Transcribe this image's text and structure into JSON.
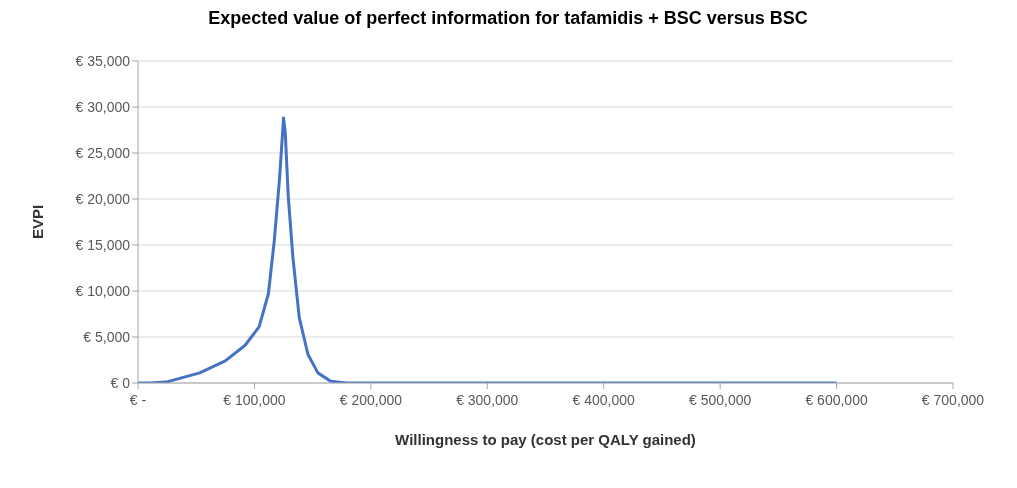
{
  "chart_data": {
    "type": "line",
    "title": "Expected value of perfect information for tafamidis + BSC versus BSC",
    "xlabel": "Willingness to pay (cost per QALY gained)",
    "ylabel": "EVPI",
    "x": [
      0,
      10000,
      24000,
      53000,
      75000,
      92000,
      104000,
      112000,
      117000,
      121500,
      125000,
      126500,
      129000,
      133000,
      138500,
      146000,
      154500,
      165500,
      179000,
      600000
    ],
    "series": [
      {
        "color": "#4472c4",
        "values": [
          0,
          0,
          100,
          1100,
          2400,
          4100,
          6100,
          9700,
          15400,
          22100,
          28800,
          27200,
          20400,
          13700,
          7100,
          3100,
          1100,
          200,
          0,
          0
        ]
      }
    ],
    "xlim": [
      0,
      700000
    ],
    "xticks": [
      {
        "value": 0,
        "label": "€ -"
      },
      {
        "value": 100000,
        "label": "€ 100,000"
      },
      {
        "value": 200000,
        "label": "€ 200,000"
      },
      {
        "value": 300000,
        "label": "€ 300,000"
      },
      {
        "value": 400000,
        "label": "€ 400,000"
      },
      {
        "value": 500000,
        "label": "€ 500,000"
      },
      {
        "value": 600000,
        "label": "€ 600,000"
      },
      {
        "value": 700000,
        "label": "€ 700,000"
      }
    ],
    "ylim": [
      0,
      35000
    ],
    "yticks": [
      {
        "value": 0,
        "label": "€ 0"
      },
      {
        "value": 5000,
        "label": "€ 5,000"
      },
      {
        "value": 10000,
        "label": "€ 10,000"
      },
      {
        "value": 15000,
        "label": "€ 15,000"
      },
      {
        "value": 20000,
        "label": "€ 20,000"
      },
      {
        "value": 25000,
        "label": "€ 25,000"
      },
      {
        "value": 30000,
        "label": "€ 30,000"
      },
      {
        "value": 35000,
        "label": "€ 35,000"
      }
    ],
    "grid": "y",
    "legend": false,
    "marker": "none",
    "line_style": "solid"
  }
}
